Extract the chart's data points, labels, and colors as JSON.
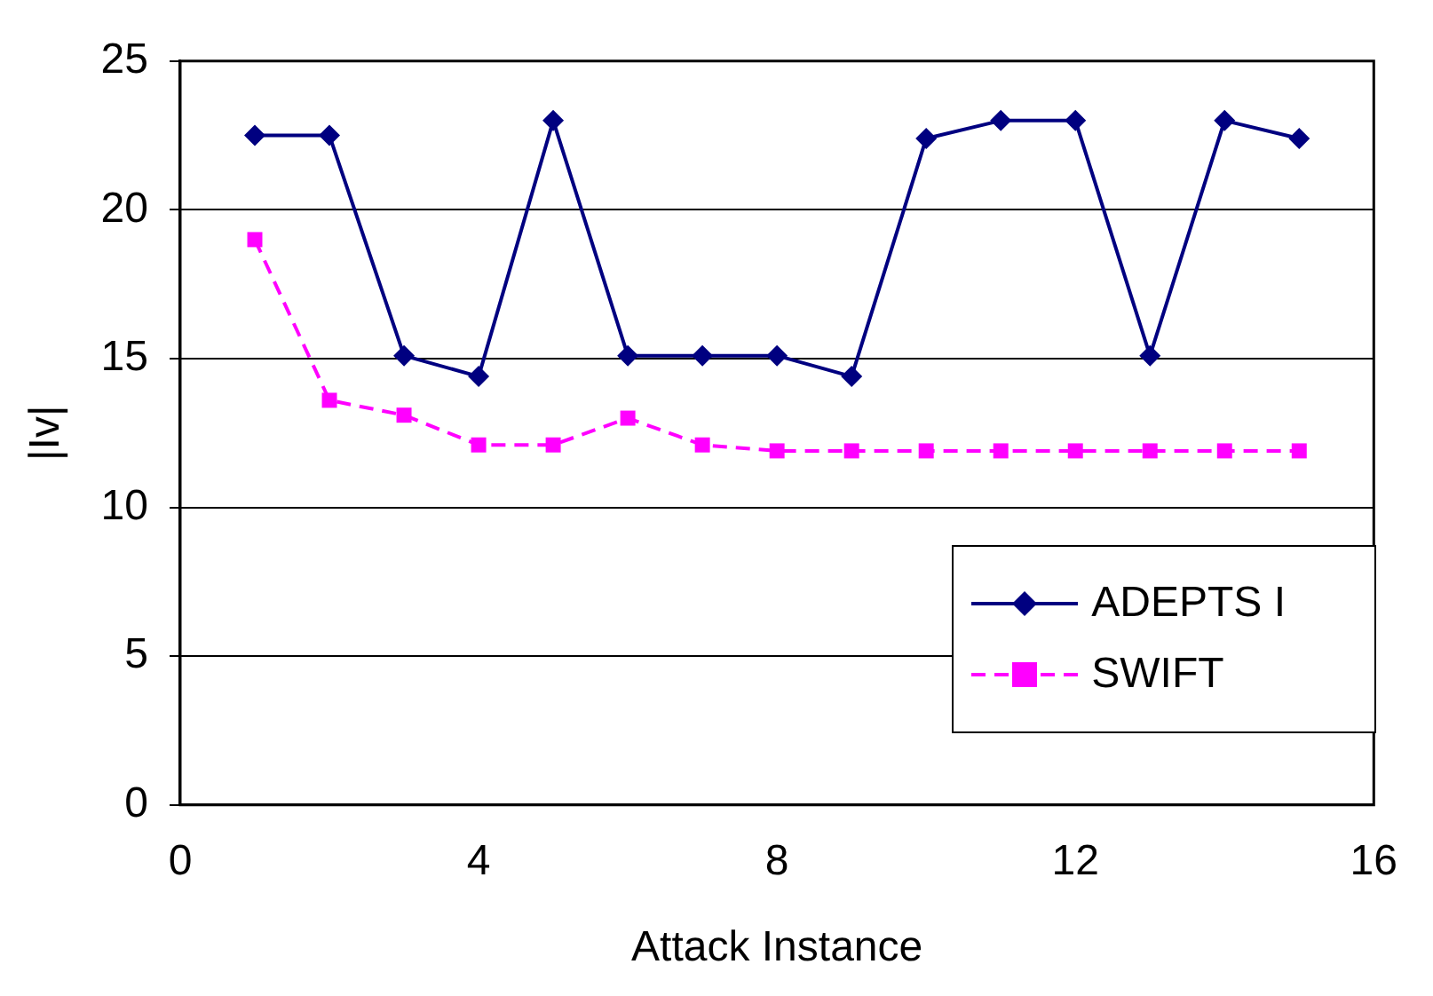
{
  "chart_data": {
    "type": "line",
    "xlabel": "Attack Instance",
    "ylabel": "|Iv|",
    "x": [
      1,
      2,
      3,
      4,
      5,
      6,
      7,
      8,
      9,
      10,
      11,
      12,
      13,
      14,
      15
    ],
    "series": [
      {
        "name": "ADEPTS I",
        "color": "#000080",
        "marker": "diamond",
        "line_style": "solid",
        "values": [
          22.5,
          22.5,
          15.1,
          14.4,
          23.0,
          15.1,
          15.1,
          15.1,
          14.4,
          22.4,
          23.0,
          23.0,
          15.1,
          23.0,
          22.4
        ]
      },
      {
        "name": "SWIFT",
        "color": "#ff00ff",
        "marker": "square",
        "line_style": "dashed",
        "values": [
          19.0,
          13.6,
          13.1,
          12.1,
          12.1,
          13.0,
          12.1,
          11.9,
          11.9,
          11.9,
          11.9,
          11.9,
          11.9,
          11.9,
          11.9
        ]
      }
    ],
    "xlim": [
      0,
      16
    ],
    "xticks": [
      0,
      4,
      8,
      12,
      16
    ],
    "ylim": [
      0,
      25
    ],
    "yticks": [
      0,
      5,
      10,
      15,
      20,
      25
    ],
    "grid": "y",
    "legend": "bottom right"
  }
}
